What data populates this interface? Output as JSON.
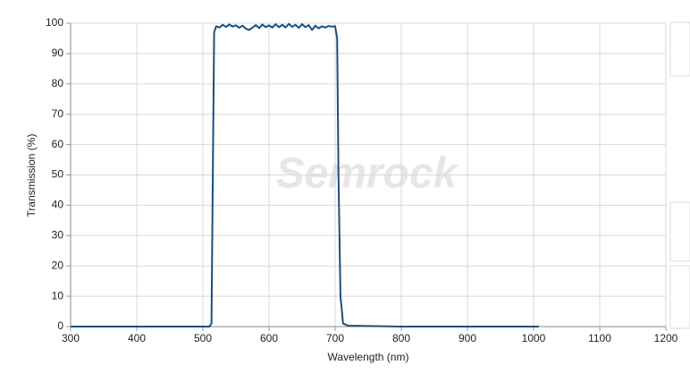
{
  "chart_data": {
    "type": "line",
    "x_label": "Wavelength (nm)",
    "y_label": "Transmission (%)",
    "watermark": "Semrock",
    "x": [
      300,
      400,
      500,
      510,
      513,
      515,
      517,
      520,
      525,
      530,
      535,
      540,
      545,
      550,
      555,
      560,
      565,
      570,
      575,
      580,
      585,
      590,
      595,
      600,
      605,
      610,
      615,
      620,
      625,
      630,
      635,
      640,
      645,
      650,
      655,
      660,
      665,
      670,
      675,
      680,
      685,
      690,
      695,
      700,
      703,
      705,
      708,
      712,
      720,
      800,
      900,
      1008
    ],
    "series": [
      {
        "color": "#1b4f7c",
        "values": [
          0,
          0,
          0,
          0,
          1,
          50,
          97,
          99,
          98.6,
          99.5,
          98.8,
          99.6,
          98.9,
          99.3,
          98.5,
          99.2,
          98.2,
          97.8,
          98.6,
          99.4,
          98.4,
          99.6,
          98.7,
          99.3,
          98.6,
          99.7,
          98.7,
          99.5,
          98.6,
          99.8,
          98.8,
          99.5,
          98.5,
          99.7,
          98.7,
          99.4,
          97.8,
          99.2,
          98.3,
          99.0,
          98.6,
          99.1,
          98.9,
          99.0,
          95,
          50,
          10,
          1,
          0.3,
          0,
          0,
          0
        ]
      }
    ],
    "xlim": [
      300,
      1200
    ],
    "ylim": [
      0,
      100
    ],
    "xticks": [
      300,
      400,
      500,
      600,
      700,
      800,
      900,
      1000,
      1100,
      1200
    ],
    "yticks": [
      0,
      10,
      20,
      30,
      40,
      50,
      60,
      70,
      80,
      90,
      100
    ],
    "grid": true
  }
}
